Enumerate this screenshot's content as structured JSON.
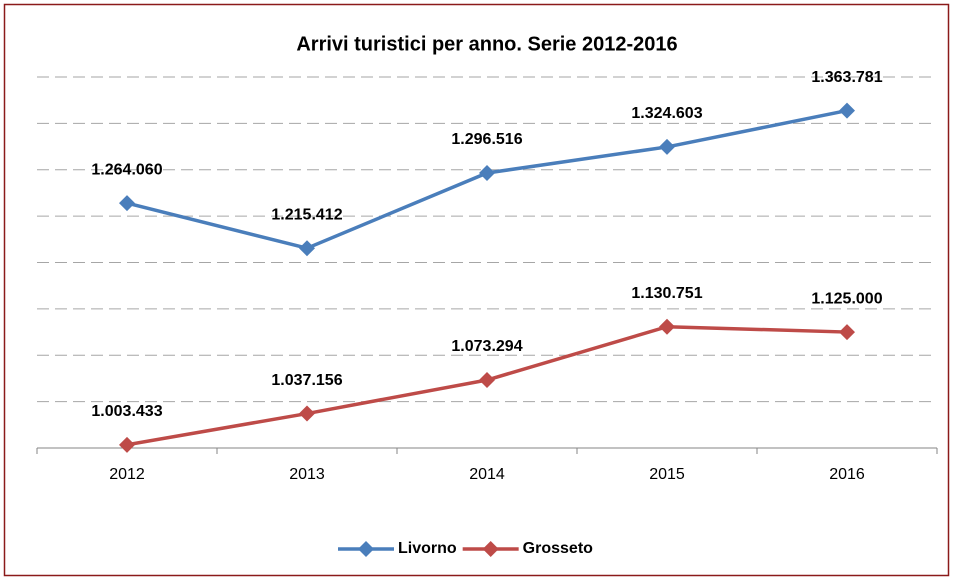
{
  "chart_data": {
    "type": "line",
    "title": "Arrivi turistici per anno. Serie 2012-2016",
    "categories": [
      "2012",
      "2013",
      "2014",
      "2015",
      "2016"
    ],
    "series": [
      {
        "name": "Livorno",
        "color": "#4a7ebb",
        "values": [
          1264060,
          1215412,
          1296516,
          1324603,
          1363781
        ],
        "value_labels": [
          "1.264.060",
          "1.215.412",
          "1.296.516",
          "1.324.603",
          "1.363.781"
        ]
      },
      {
        "name": "Grosseto",
        "color": "#be4b48",
        "values": [
          1003433,
          1037156,
          1073294,
          1130751,
          1125000
        ],
        "value_labels": [
          "1.003.433",
          "1.037.156",
          "1.073.294",
          "1.130.751",
          "1.125.000"
        ]
      }
    ],
    "ylim": [
      1000000,
      1400000
    ],
    "yticks": [
      1000000,
      1050000,
      1100000,
      1150000,
      1200000,
      1250000,
      1300000,
      1350000,
      1400000
    ],
    "grid": true,
    "legend": "bottom"
  }
}
